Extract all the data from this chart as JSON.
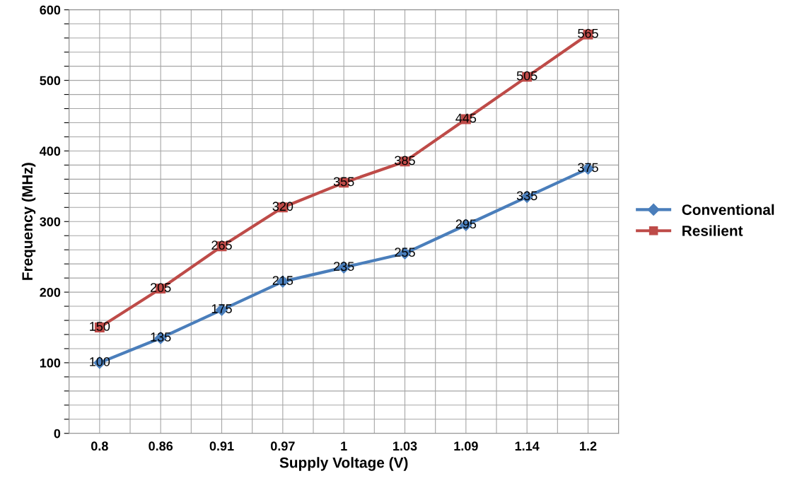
{
  "chart_data": {
    "type": "line",
    "xlabel": "Supply Voltage (V)",
    "ylabel": "Frequency (MHz)",
    "categories": [
      "0.8",
      "0.86",
      "0.91",
      "0.97",
      "1",
      "1.03",
      "1.09",
      "1.14",
      "1.2"
    ],
    "series": [
      {
        "name": "Conventional",
        "color": "#4a7ebb",
        "marker": "diamond",
        "values": [
          100,
          135,
          175,
          215,
          235,
          255,
          295,
          335,
          375
        ]
      },
      {
        "name": "Resilient",
        "color": "#be4b48",
        "marker": "square",
        "values": [
          150,
          205,
          265,
          320,
          355,
          385,
          445,
          505,
          565
        ]
      }
    ],
    "ylim": [
      0,
      600
    ],
    "yticks": [
      0,
      {
        "value": 20,
        "label": null
      },
      {
        "value": 40,
        "label": null
      },
      {
        "value": 60,
        "label": null
      },
      {
        "value": 80,
        "label": null
      },
      100,
      {
        "value": 120,
        "label": null
      },
      {
        "value": 140,
        "label": null
      },
      {
        "value": 160,
        "label": null
      },
      {
        "value": 180,
        "label": null
      },
      200,
      {
        "value": 220,
        "label": null
      },
      {
        "value": 240,
        "label": null
      },
      {
        "value": 260,
        "label": null
      },
      {
        "value": 280,
        "label": null
      },
      300,
      {
        "value": 320,
        "label": null
      },
      {
        "value": 340,
        "label": null
      },
      {
        "value": 360,
        "label": null
      },
      {
        "value": 380,
        "label": null
      },
      400,
      {
        "value": 420,
        "label": null
      },
      {
        "value": 440,
        "label": null
      },
      {
        "value": 460,
        "label": null
      },
      {
        "value": 480,
        "label": null
      },
      500,
      {
        "value": 520,
        "label": null
      },
      {
        "value": 540,
        "label": null
      },
      {
        "value": 560,
        "label": null
      },
      {
        "value": 580,
        "label": null
      },
      600
    ],
    "grid": true,
    "legend": "right",
    "data_labels": true,
    "line_style": "solid"
  }
}
